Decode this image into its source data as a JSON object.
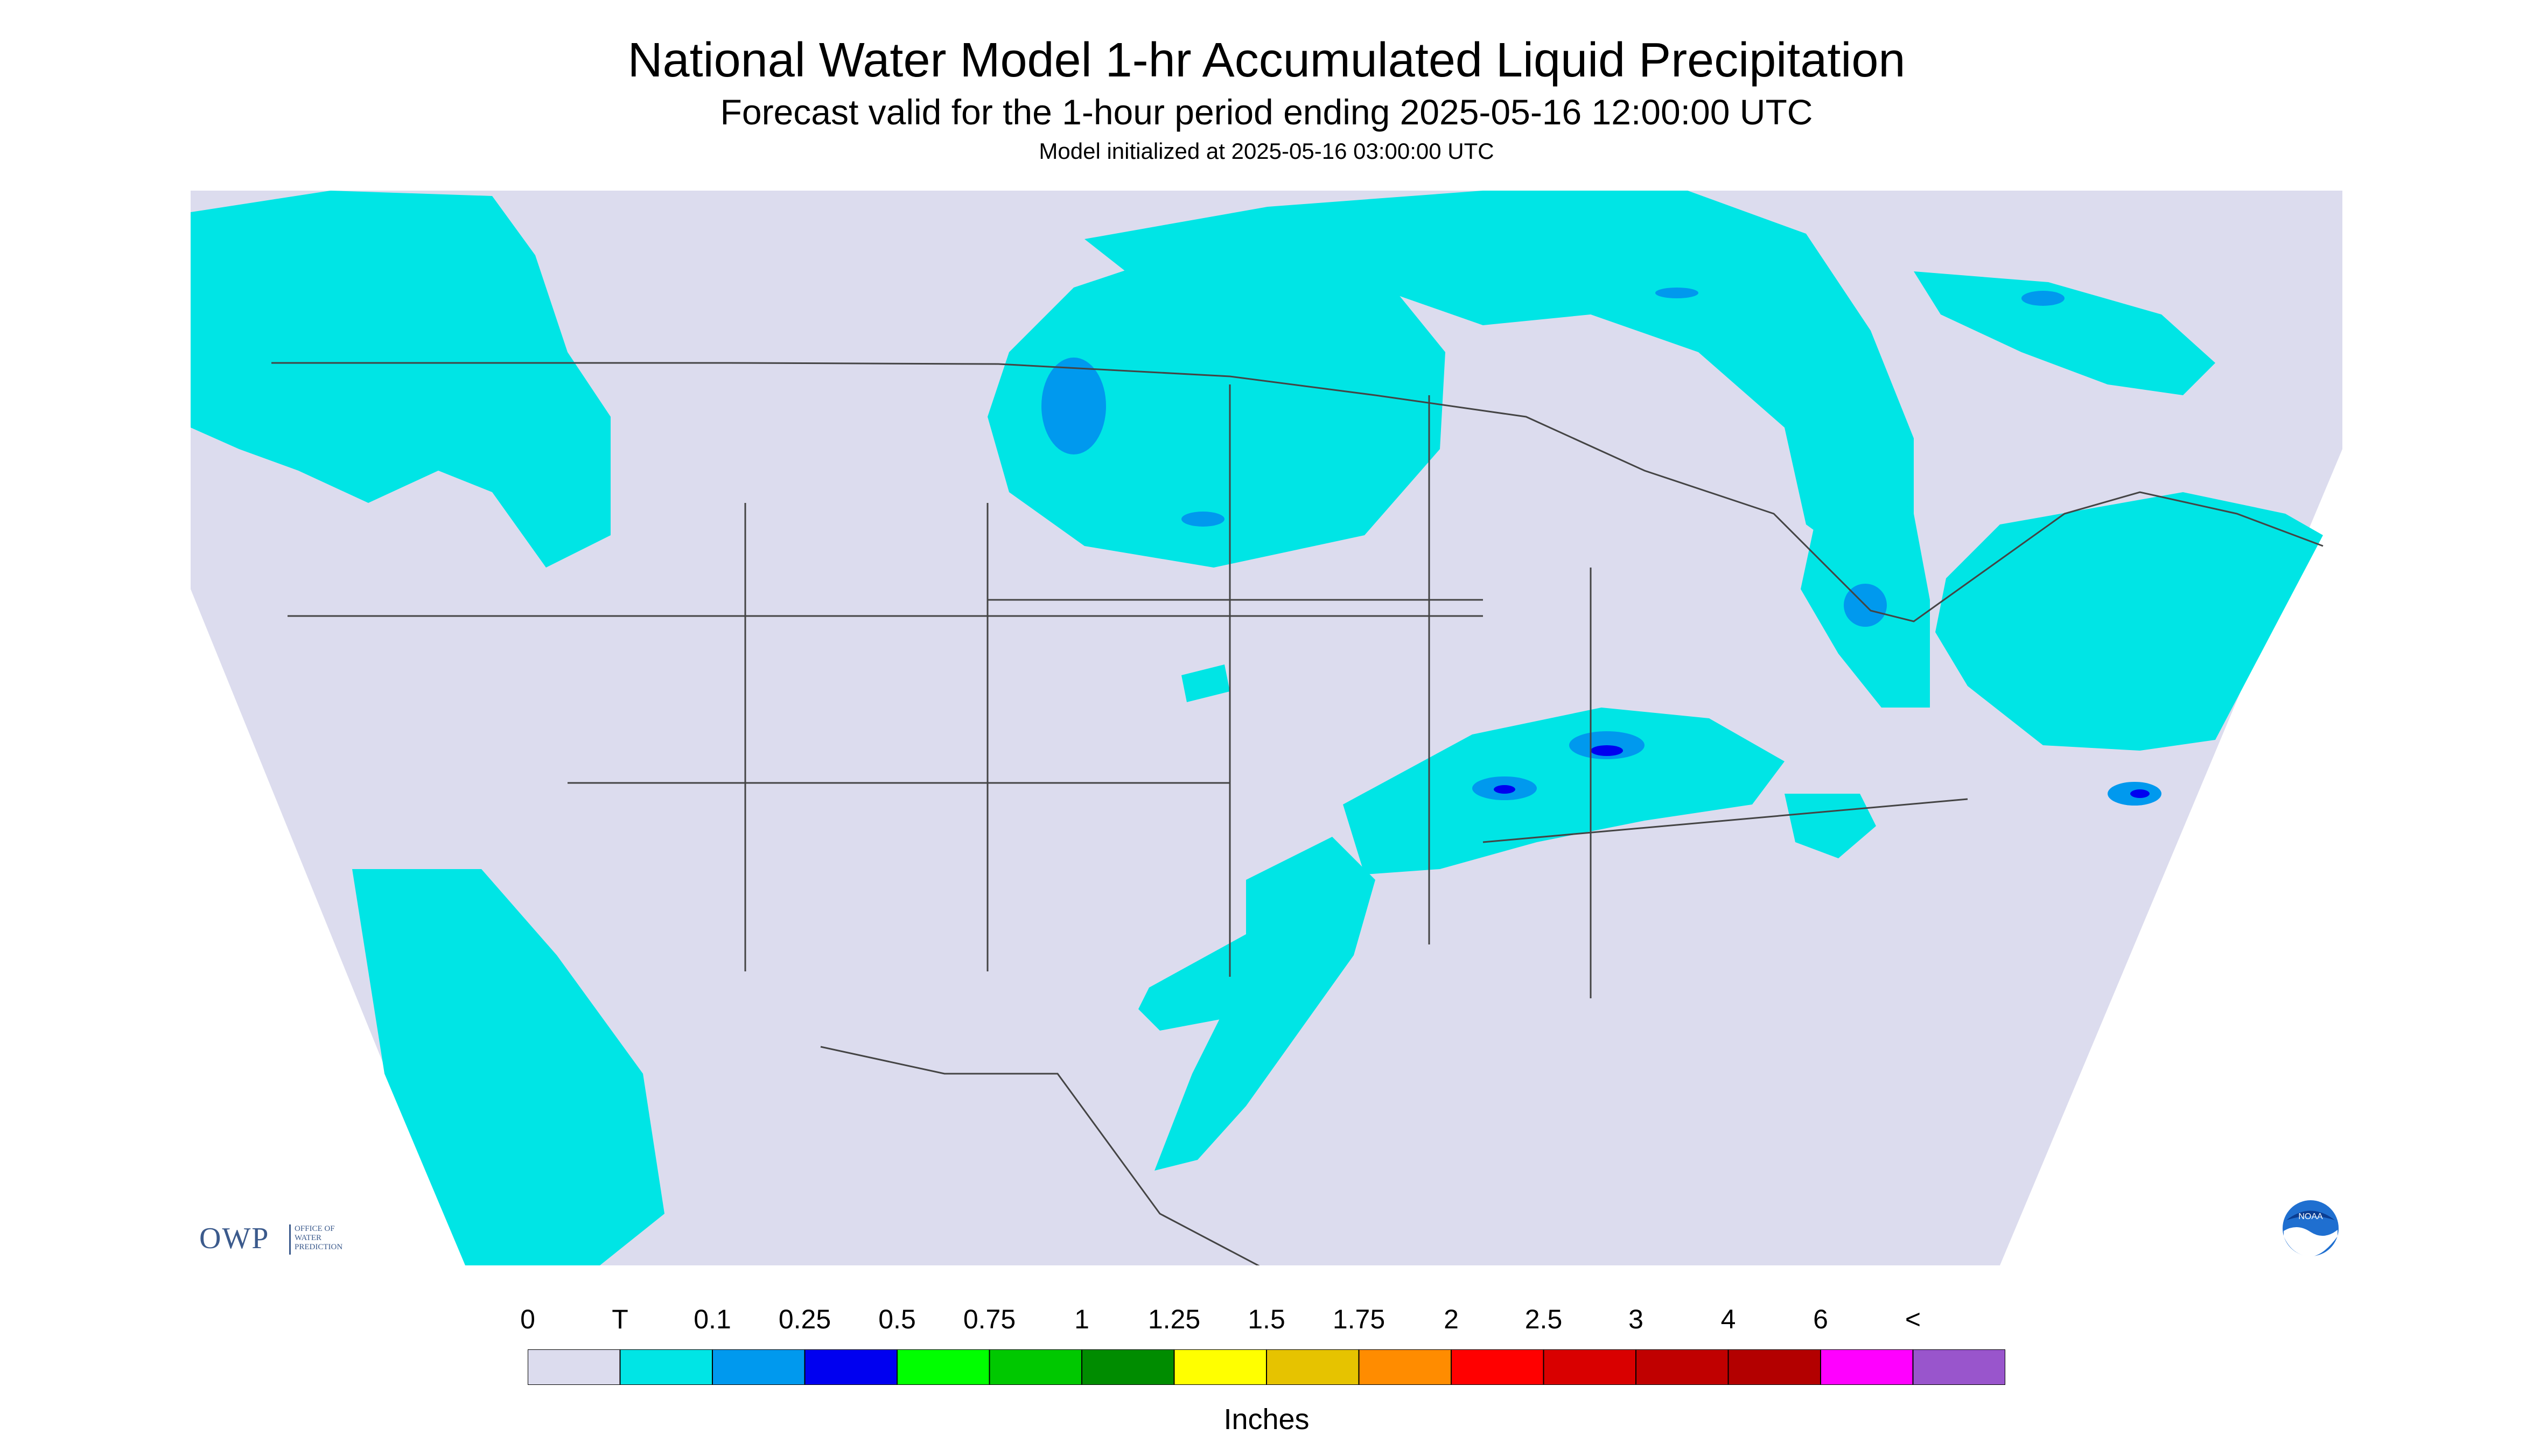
{
  "header": {
    "title": "National Water Model 1-hr Accumulated Liquid Precipitation",
    "subtitle": "Forecast valid for the 1-hour period ending 2025-05-16 12:00:00 UTC",
    "init": "Model initialized at 2025-05-16 03:00:00 UTC"
  },
  "legend": {
    "labels": [
      "0",
      "T",
      "0.1",
      "0.25",
      "0.5",
      "0.75",
      "1",
      "1.25",
      "1.5",
      "1.75",
      "2",
      "2.5",
      "3",
      "4",
      "6",
      "<"
    ],
    "colors": [
      "#dcdcee",
      "#00e5e5",
      "#0099ee",
      "#0000f0",
      "#00ff00",
      "#00c800",
      "#008c00",
      "#ffff00",
      "#e6c300",
      "#ff8c00",
      "#ff0000",
      "#d90000",
      "#c00000",
      "#b30000",
      "#ff00ff",
      "#9955cc"
    ],
    "units": "Inches"
  },
  "logos": {
    "owp_text": "OWP",
    "owp_sub": "OFFICE OF\nWATER\nPREDICTION",
    "noaa_text": "NOAA"
  },
  "colors": {
    "no_data": "#ffffff",
    "zero": "#dcdcee",
    "trace": "#00e5e5",
    "light": "#0099ee",
    "moderate": "#0000f0"
  }
}
